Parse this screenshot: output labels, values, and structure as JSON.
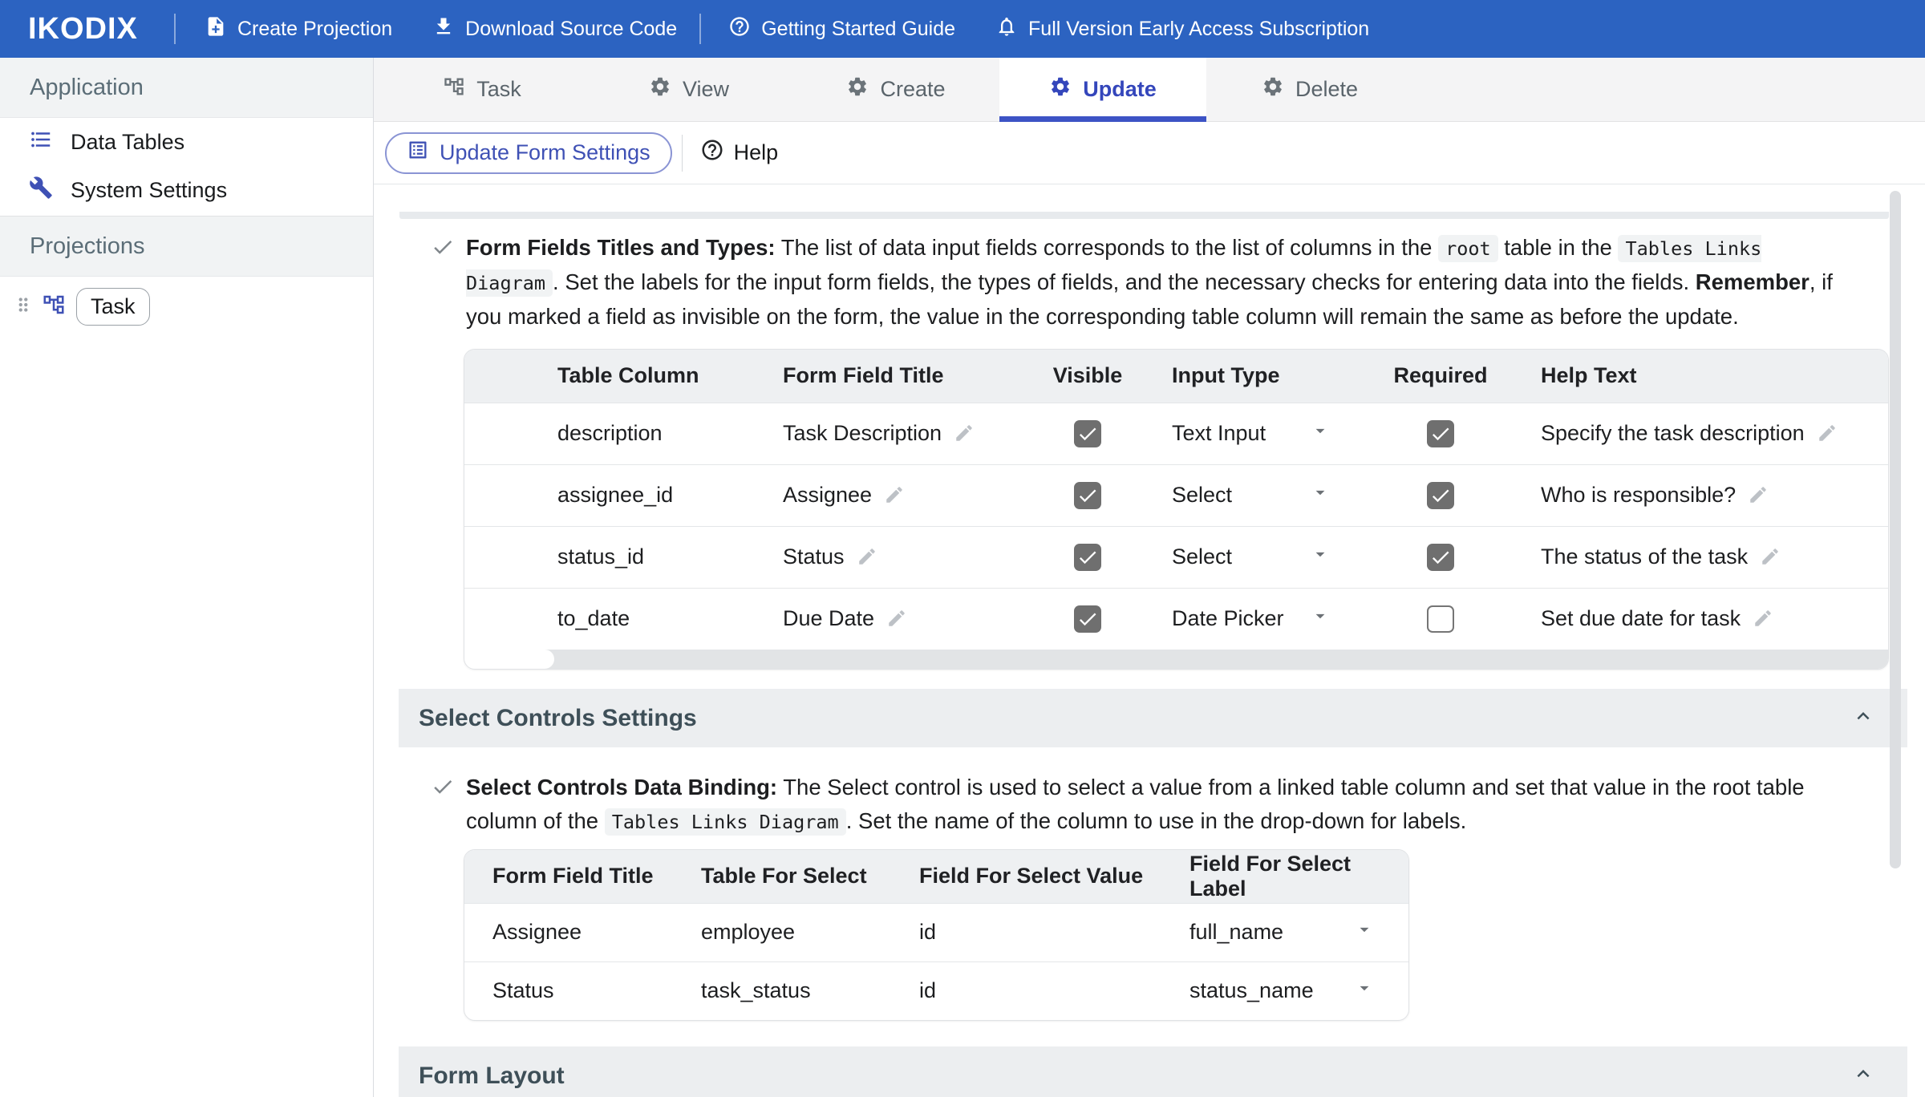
{
  "topbar": {
    "logo": "IKODIX",
    "items": [
      {
        "label": "Create Projection"
      },
      {
        "label": "Download Source Code"
      },
      {
        "label": "Getting Started Guide"
      },
      {
        "label": "Full Version Early Access Subscription"
      }
    ]
  },
  "sidebar": {
    "sections": [
      {
        "title": "Application",
        "items": [
          {
            "label": "Data Tables"
          },
          {
            "label": "System Settings"
          }
        ]
      },
      {
        "title": "Projections",
        "items": [
          {
            "label": "Task"
          }
        ]
      }
    ]
  },
  "tabs": [
    {
      "label": "Task"
    },
    {
      "label": "View"
    },
    {
      "label": "Create"
    },
    {
      "label": "Update",
      "active": true
    },
    {
      "label": "Delete"
    }
  ],
  "toolbar": {
    "primary_button": "Update Form Settings",
    "help_label": "Help"
  },
  "colors": {
    "topbar_blue": "#2c63c1",
    "accent_indigo": "#3f51b5",
    "active_tab_underline": "#3d53c5"
  },
  "note1": {
    "segments": [
      {
        "style": "bold",
        "text": "Form Fields Titles and Types:"
      },
      {
        "style": "text",
        "text": " The list of data input fields corresponds to the list of columns in the "
      },
      {
        "style": "code",
        "text": "root"
      },
      {
        "style": "text",
        "text": " table in the "
      },
      {
        "style": "code",
        "text": "Tables Links Diagram"
      },
      {
        "style": "text",
        "text": ". Set the labels for the input form fields, the types of fields, and the necessary checks for entering data into the fields. "
      },
      {
        "style": "bold",
        "text": "Remember"
      },
      {
        "style": "text",
        "text": ", if you marked a field as invisible on the form, the value in the corresponding table column will remain the same as before the update."
      }
    ]
  },
  "fields_table": {
    "columns": [
      "Table Column",
      "Form Field Title",
      "Visible",
      "Input Type",
      "Required",
      "Help Text"
    ],
    "rows": [
      {
        "table_column": "description",
        "form_field_title": "Task Description",
        "visible": true,
        "input_type": "Text Input",
        "required": true,
        "help_text": "Specify the task description"
      },
      {
        "table_column": "assignee_id",
        "form_field_title": "Assignee",
        "visible": true,
        "input_type": "Select",
        "required": true,
        "help_text": "Who is responsible?"
      },
      {
        "table_column": "status_id",
        "form_field_title": "Status",
        "visible": true,
        "input_type": "Select",
        "required": true,
        "help_text": "The status of the task"
      },
      {
        "table_column": "to_date",
        "form_field_title": "Due Date",
        "visible": true,
        "input_type": "Date Picker",
        "required": false,
        "help_text": "Set due date for task"
      }
    ]
  },
  "select_section": {
    "title": "Select Controls Settings"
  },
  "note2": {
    "segments": [
      {
        "style": "bold",
        "text": "Select Controls Data Binding:"
      },
      {
        "style": "text",
        "text": " The Select control is used to select a value from a linked table column and set that value in the root table column of the "
      },
      {
        "style": "code",
        "text": "Tables Links Diagram"
      },
      {
        "style": "text",
        "text": ". Set the name of the column to use in the drop-down for labels."
      }
    ]
  },
  "binding_table": {
    "columns": [
      "Form Field Title",
      "Table For Select",
      "Field For Select Value",
      "Field For Select Label"
    ],
    "rows": [
      {
        "form_field_title": "Assignee",
        "table_for_select": "employee",
        "field_for_select_value": "id",
        "field_for_select_label": "full_name"
      },
      {
        "form_field_title": "Status",
        "table_for_select": "task_status",
        "field_for_select_value": "id",
        "field_for_select_label": "status_name"
      }
    ]
  },
  "layout_section": {
    "title": "Form Layout"
  }
}
